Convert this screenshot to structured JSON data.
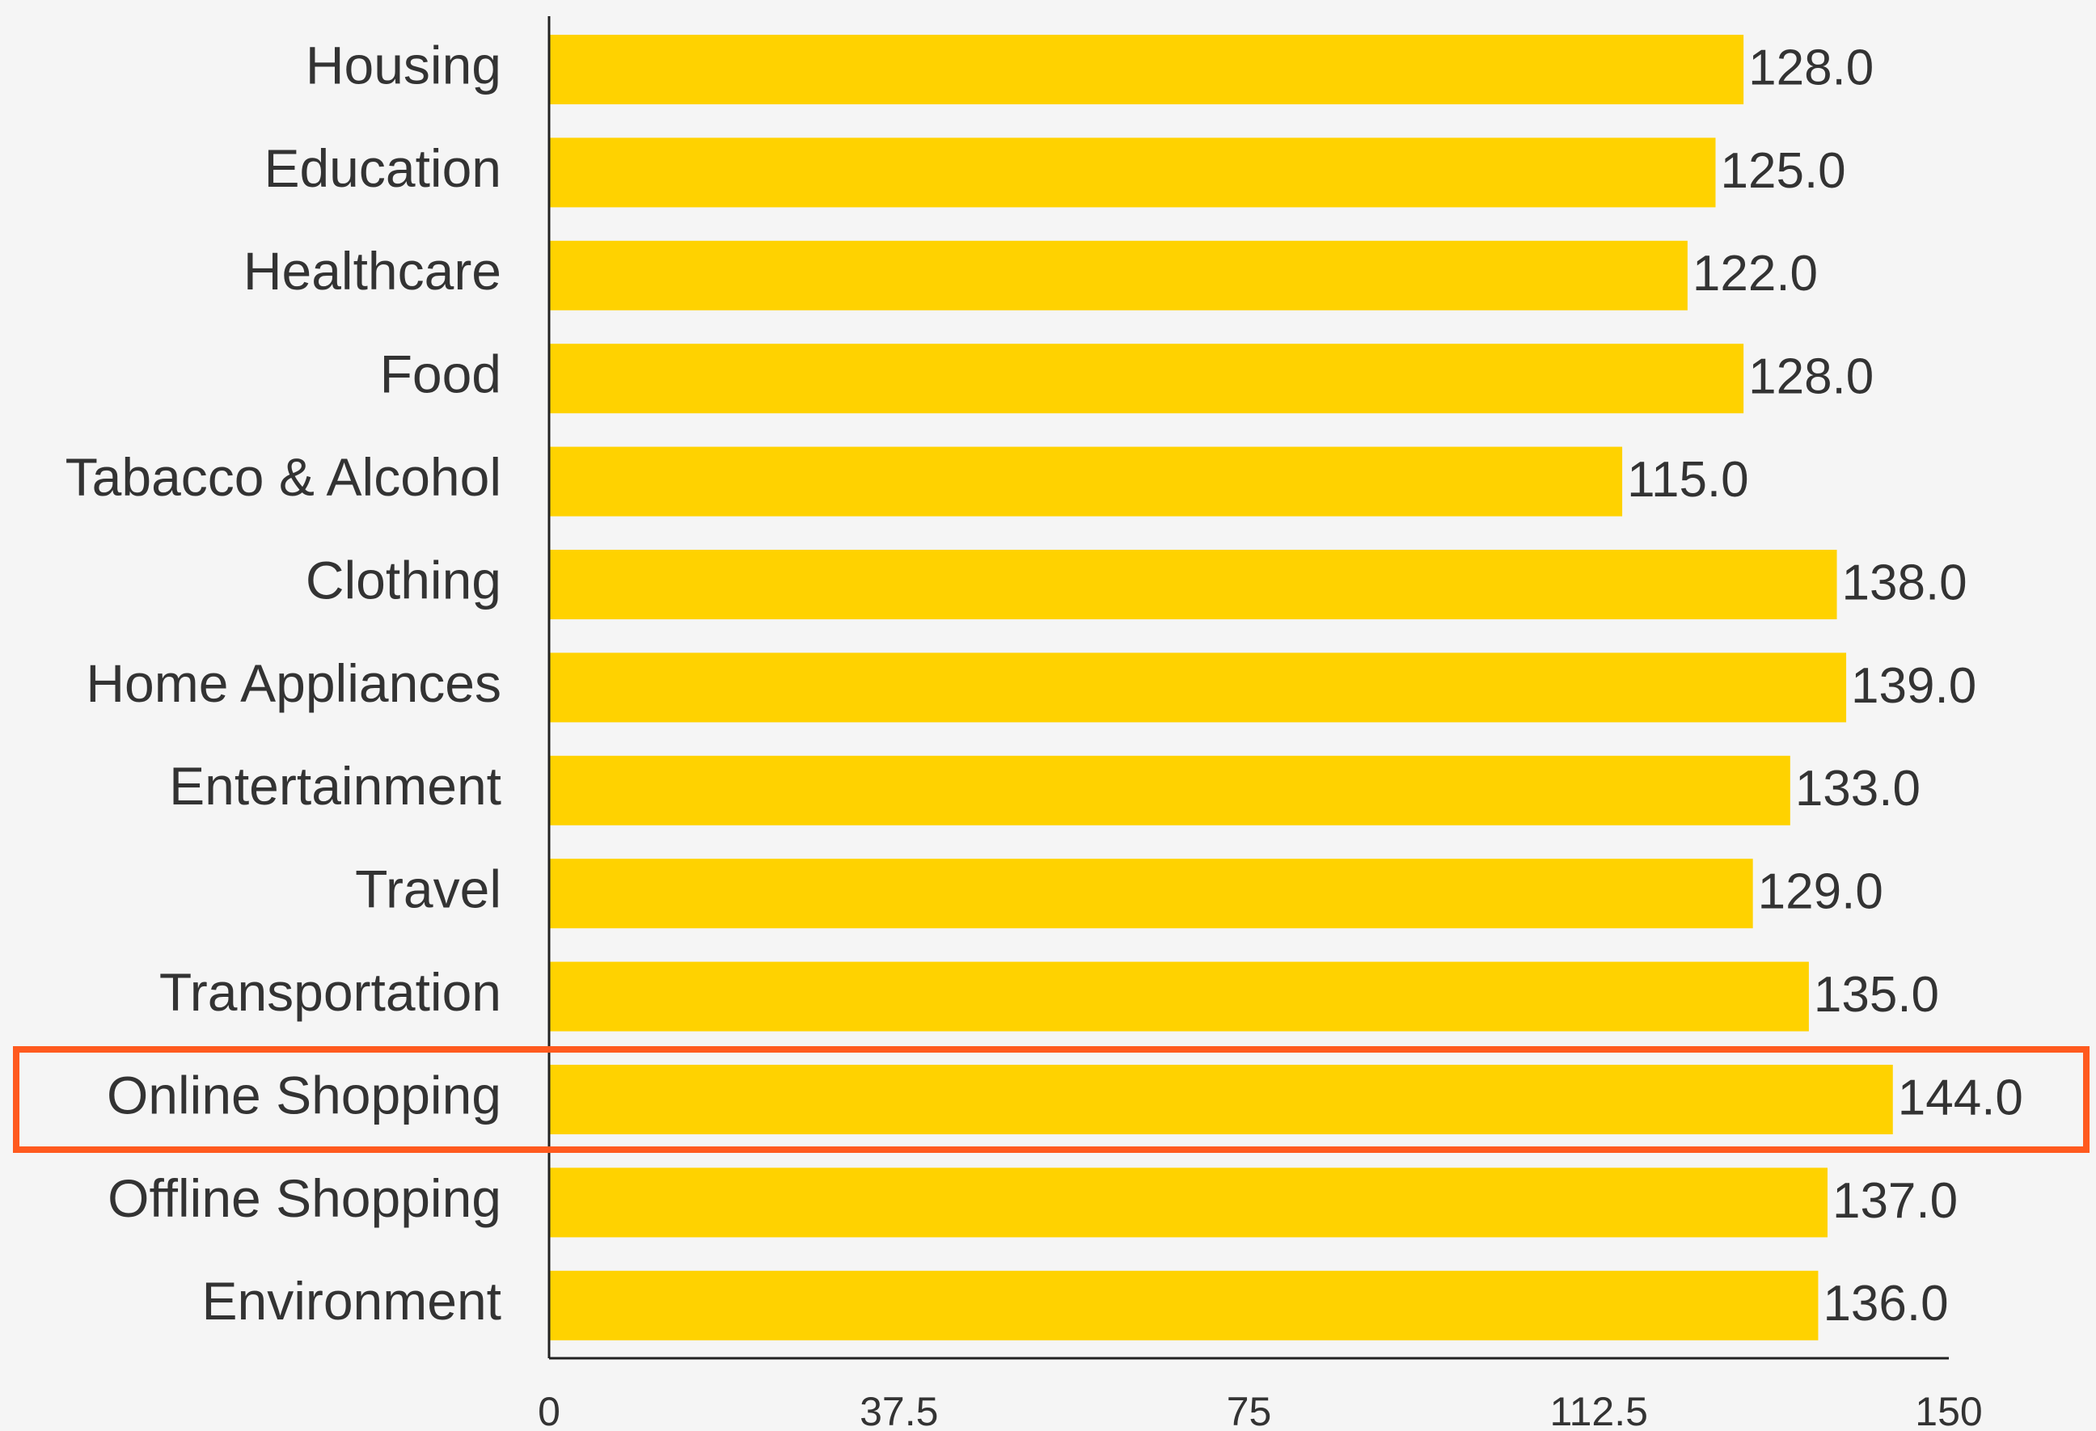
{
  "chart_data": {
    "type": "barh",
    "categories": [
      "Housing",
      "Education",
      "Healthcare",
      "Food",
      "Tabacco & Alcohol",
      "Clothing",
      "Home Appliances",
      "Entertainment",
      "Travel",
      "Transportation",
      "Online Shopping",
      "Offline Shopping",
      "Environment"
    ],
    "values": [
      128,
      125,
      122,
      128,
      115,
      138,
      139,
      133,
      129,
      135,
      144,
      137,
      136
    ],
    "value_labels": [
      "128.0",
      "125.0",
      "122.0",
      "128.0",
      "115.0",
      "138.0",
      "139.0",
      "133.0",
      "129.0",
      "135.0",
      "144.0",
      "137.0",
      "136.0"
    ],
    "color": "#ffd200",
    "xlim": [
      0,
      150
    ],
    "xticks": [
      0,
      37.5,
      75,
      112.5,
      150
    ],
    "grid": false,
    "highlight": 10,
    "highlight_color": "#ff5a1f"
  }
}
